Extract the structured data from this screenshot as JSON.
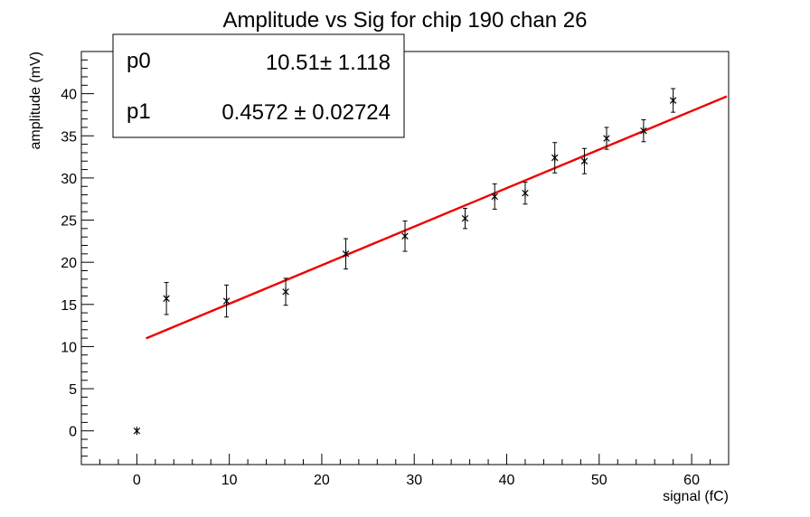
{
  "chart_data": {
    "type": "scatter",
    "title": "Amplitude vs Sig for chip 190 chan 26",
    "xlabel": "signal (fC)",
    "ylabel": "amplitude (mV)",
    "xlim": [
      -6,
      64
    ],
    "ylim": [
      -4,
      45
    ],
    "x_ticks": [
      0,
      10,
      20,
      30,
      40,
      50,
      60
    ],
    "y_ticks": [
      0,
      5,
      10,
      15,
      20,
      25,
      30,
      35,
      40
    ],
    "grid": false,
    "marker": "star",
    "series": [
      {
        "points": [
          {
            "x": 0,
            "y": 0,
            "err": 0
          },
          {
            "x": 3.2,
            "y": 15.7,
            "err": 1.9
          },
          {
            "x": 9.7,
            "y": 15.4,
            "err": 1.9
          },
          {
            "x": 16.1,
            "y": 16.5,
            "err": 1.6
          },
          {
            "x": 22.6,
            "y": 21.0,
            "err": 1.8
          },
          {
            "x": 29.0,
            "y": 23.1,
            "err": 1.8
          },
          {
            "x": 35.5,
            "y": 25.2,
            "err": 1.2
          },
          {
            "x": 38.7,
            "y": 27.8,
            "err": 1.5
          },
          {
            "x": 42.0,
            "y": 28.2,
            "err": 1.3
          },
          {
            "x": 45.2,
            "y": 32.4,
            "err": 1.8
          },
          {
            "x": 48.4,
            "y": 32.0,
            "err": 1.5
          },
          {
            "x": 50.8,
            "y": 34.7,
            "err": 1.3
          },
          {
            "x": 54.8,
            "y": 35.6,
            "err": 1.3
          },
          {
            "x": 58.0,
            "y": 39.2,
            "err": 1.4
          }
        ]
      }
    ],
    "fit": {
      "function": "linear",
      "color": "#ee0000",
      "x_range": [
        1.0,
        63.8
      ],
      "params": [
        {
          "name": "p0",
          "value": "10.51",
          "error": "1.118",
          "numeric": 10.51
        },
        {
          "name": "p1",
          "value": "0.4572",
          "error": "0.02724",
          "numeric": 0.4572
        }
      ]
    },
    "stats_box_position": "top-left",
    "pm_symbol": "±"
  }
}
